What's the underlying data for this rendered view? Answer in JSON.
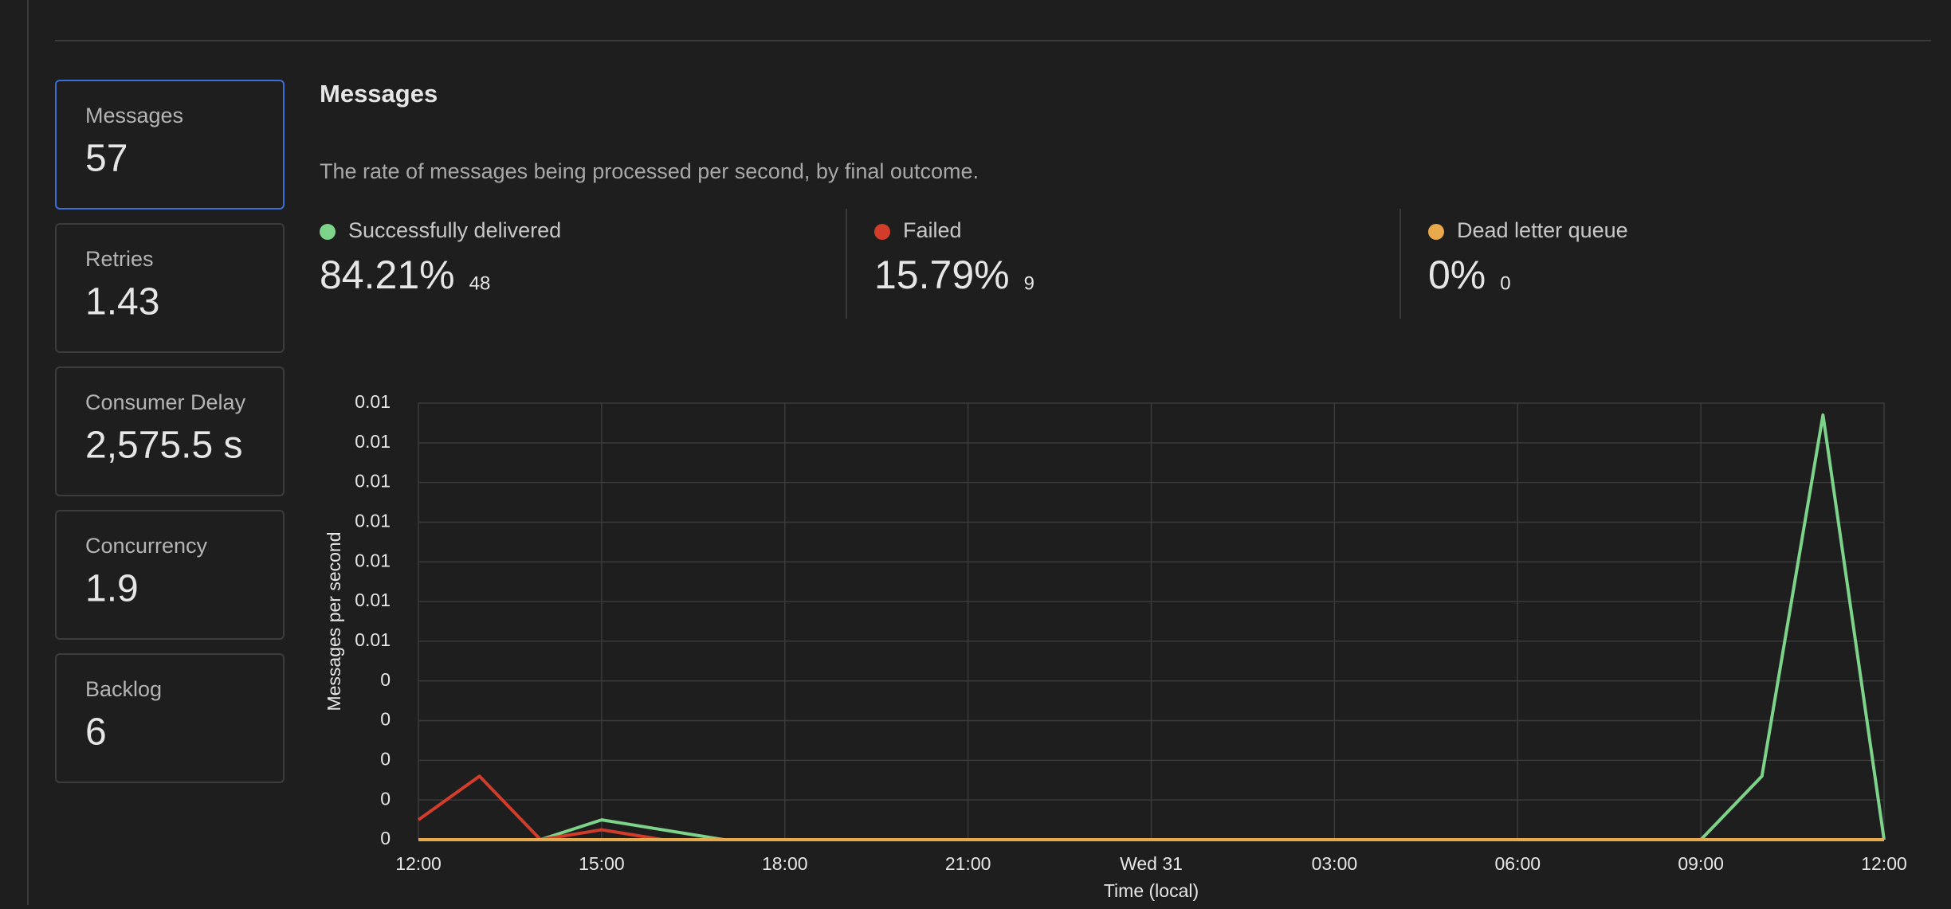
{
  "sidebar": {
    "selected": 0,
    "metrics": [
      {
        "label": "Messages",
        "value": "57"
      },
      {
        "label": "Retries",
        "value": "1.43"
      },
      {
        "label": "Consumer Delay",
        "value": "2,575.5 s"
      },
      {
        "label": "Concurrency",
        "value": "1.9"
      },
      {
        "label": "Backlog",
        "value": "6"
      }
    ]
  },
  "panel": {
    "title": "Messages",
    "description": "The rate of messages being processed per second, by final outcome.",
    "outcomes": [
      {
        "percent": "84.21%",
        "count": 48
      },
      {
        "percent": "15.79%",
        "count": 9
      },
      {
        "percent": "0%",
        "count": 0
      }
    ]
  },
  "chart_data": {
    "type": "line",
    "x_label": "Time (local)",
    "y_label": "Messages per second",
    "x": [
      0,
      1,
      2,
      3,
      4,
      5,
      6,
      7,
      8,
      9,
      10,
      11,
      12,
      13,
      14,
      15,
      16,
      17,
      18,
      19,
      20,
      21,
      22,
      23,
      24
    ],
    "xlim": [
      0,
      24
    ],
    "xticks": [
      {
        "value": 0,
        "label": "12:00"
      },
      {
        "value": 3,
        "label": "15:00"
      },
      {
        "value": 6,
        "label": "18:00"
      },
      {
        "value": 9,
        "label": "21:00"
      },
      {
        "value": 12,
        "label": "Wed 31"
      },
      {
        "value": 15,
        "label": "03:00"
      },
      {
        "value": 18,
        "label": "06:00"
      },
      {
        "value": 21,
        "label": "09:00"
      },
      {
        "value": 24,
        "label": "12:00"
      }
    ],
    "ylim": [
      0,
      0.011
    ],
    "yticks": [
      0,
      {
        "value": 0.001,
        "label": "0"
      },
      {
        "value": 0.002,
        "label": "0"
      },
      {
        "value": 0.003,
        "label": "0"
      },
      {
        "value": 0.004,
        "label": "0"
      },
      {
        "value": 0.005,
        "label": "0.01"
      },
      {
        "value": 0.006,
        "label": "0.01"
      },
      {
        "value": 0.007,
        "label": "0.01"
      },
      {
        "value": 0.008,
        "label": "0.01"
      },
      {
        "value": 0.009,
        "label": "0.01"
      },
      0.01,
      {
        "value": 0.011,
        "label": "0.01"
      }
    ],
    "grid": true,
    "series": [
      {
        "name": "Successfully delivered",
        "color": "#7dd389",
        "values": [
          0,
          0,
          0,
          0.0005,
          0.00025,
          0,
          0,
          0,
          0,
          0,
          0,
          0,
          0,
          0,
          0,
          0,
          0,
          0,
          0,
          0,
          0,
          0,
          0.0016,
          0.0107,
          0
        ]
      },
      {
        "name": "Failed",
        "color": "#d23c2b",
        "values": [
          0.0005,
          0.0016,
          0,
          0.00025,
          0,
          0,
          0,
          0,
          0,
          0,
          0,
          0,
          0,
          0,
          0,
          0,
          0,
          0,
          0,
          0,
          0,
          0,
          0,
          0,
          0
        ]
      },
      {
        "name": "Dead letter queue",
        "color": "#e8a94c",
        "values": [
          0,
          0,
          0,
          0,
          0,
          0,
          0,
          0,
          0,
          0,
          0,
          0,
          0,
          0,
          0,
          0,
          0,
          0,
          0,
          0,
          0,
          0,
          0,
          0,
          0
        ]
      }
    ]
  }
}
